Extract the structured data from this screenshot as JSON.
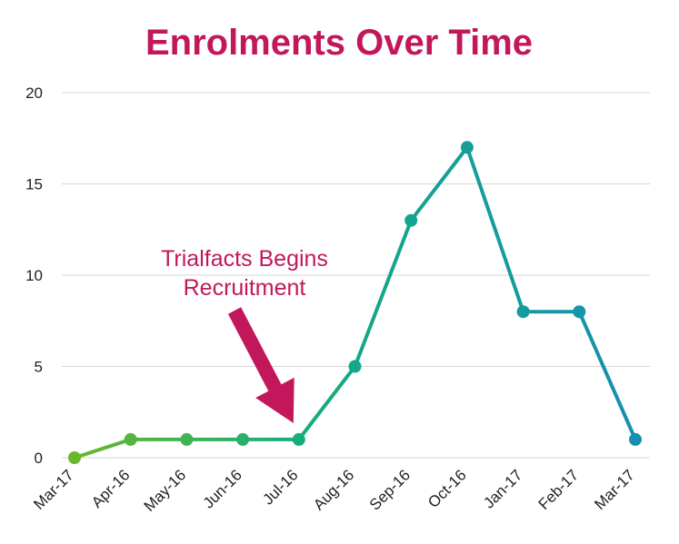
{
  "chart_data": {
    "type": "line",
    "title": "Enrolments Over Time",
    "xlabel": "",
    "ylabel": "",
    "categories": [
      "Mar-17",
      "Apr-16",
      "May-16",
      "Jun-16",
      "Jul-16",
      "Aug-16",
      "Sep-16",
      "Oct-16",
      "Jan-17",
      "Feb-17",
      "Mar-17"
    ],
    "values": [
      0,
      1,
      1,
      1,
      1,
      5,
      13,
      17,
      8,
      8,
      1
    ],
    "ylim": [
      0,
      20
    ],
    "yticks": [
      "0",
      "5",
      "10",
      "15",
      "20"
    ],
    "grid": true,
    "legend": "none",
    "annotation": {
      "lines": [
        "Trialfacts Begins",
        "Recruitment"
      ],
      "target_category": "Jul-16"
    },
    "colors": {
      "title": "#c2185b",
      "annotation": "#c2185b",
      "arrow": "#c2185b",
      "grid": "#d6d6d6",
      "gradient_start": "#6ab82a",
      "gradient_mid": "#14ae7e",
      "gradient_end": "#168fb0"
    }
  }
}
